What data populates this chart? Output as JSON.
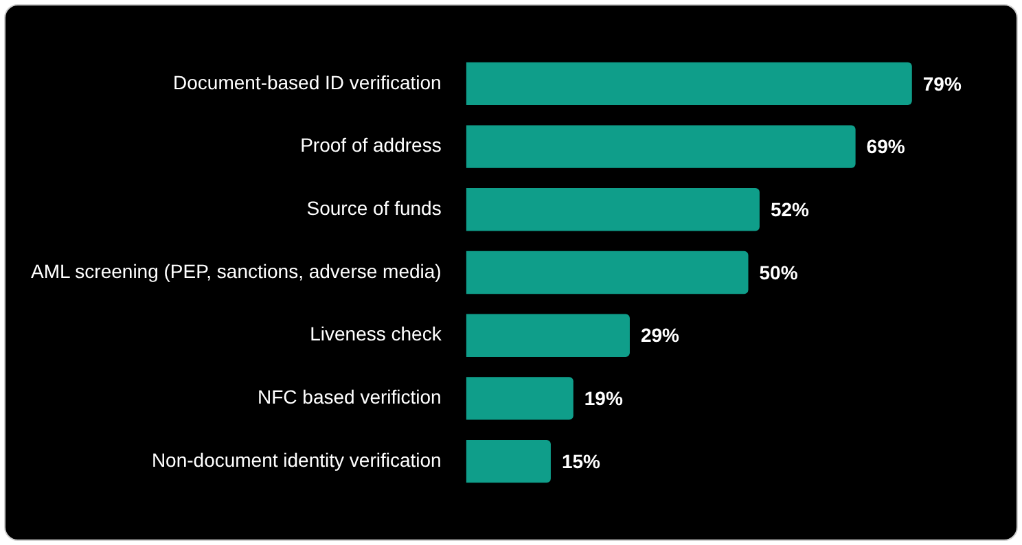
{
  "chart_data": {
    "type": "bar",
    "orientation": "horizontal",
    "categories": [
      "Document-based ID verification",
      "Proof of address",
      "Source of funds",
      "AML screening (PEP, sanctions, adverse media)",
      "Liveness check",
      "NFC based verifiction",
      "Non-document identity verification"
    ],
    "values": [
      79,
      69,
      52,
      50,
      29,
      19,
      15
    ],
    "value_labels": [
      "79%",
      "69%",
      "52%",
      "50%",
      "29%",
      "19%",
      "15%"
    ],
    "color": "#0f9e8a"
  }
}
